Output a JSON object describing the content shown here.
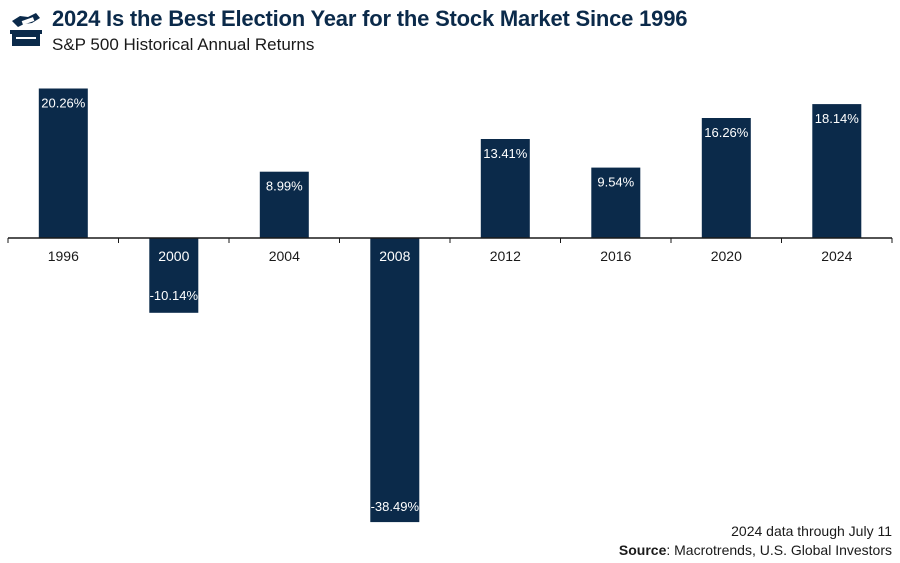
{
  "header": {
    "title": "2024 Is the Best Election Year for the Stock Market Since 1996",
    "subtitle": "S&P 500 Historical Annual Returns",
    "icon": "ballot-box-icon"
  },
  "chart_data": {
    "type": "bar",
    "title": "2024 Is the Best Election Year for the Stock Market Since 1996",
    "subtitle": "S&P 500 Historical Annual Returns",
    "categories": [
      "1996",
      "2000",
      "2004",
      "2008",
      "2012",
      "2016",
      "2020",
      "2024"
    ],
    "values": [
      20.26,
      -10.14,
      8.99,
      -38.49,
      13.41,
      9.54,
      16.26,
      18.14
    ],
    "value_labels": [
      "20.26%",
      "-10.14%",
      "8.99%",
      "-38.49%",
      "13.41%",
      "9.54%",
      "16.26%",
      "18.14%"
    ],
    "xlabel": "",
    "ylabel": "",
    "ylim": [
      -39.5,
      21.5
    ],
    "grid": false,
    "bar_color": "#0b2a4a",
    "label_color": "#ffffff"
  },
  "footer": {
    "note": "2024 data through July 11",
    "source_label": "Source",
    "source_text": ": Macrotrends, U.S. Global Investors"
  },
  "colors": {
    "brand": "#0b2a4a",
    "text": "#1a1a1a",
    "axis": "#1a1a1a"
  }
}
